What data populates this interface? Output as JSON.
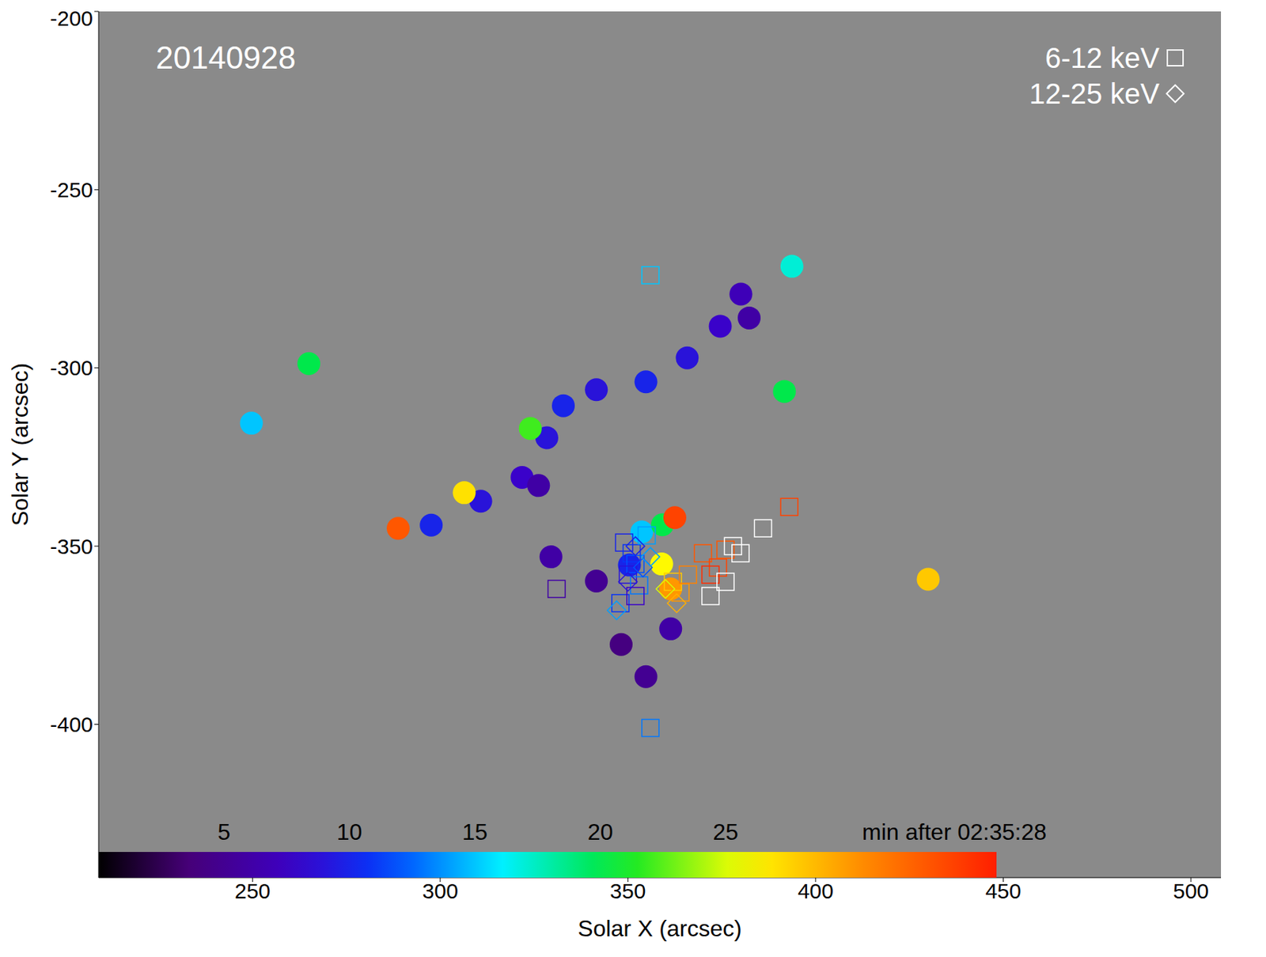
{
  "chart_data": {
    "type": "scatter",
    "title": "20140928",
    "x_label": "Solar X (arcsec)",
    "y_label": "Solar Y (arcsec)",
    "xlim": [
      209,
      508
    ],
    "ylim": [
      -443,
      -200
    ],
    "xticks": [
      250,
      300,
      350,
      400,
      450,
      500
    ],
    "yticks": [
      -400,
      -350,
      -300,
      -250,
      -200
    ],
    "legend": "upper right",
    "colorbar": {
      "range": [
        0,
        35.8
      ],
      "ticks": [
        5,
        10,
        15,
        20,
        25
      ],
      "label": "min after 02:35:28"
    },
    "series": [
      {
        "name": "6-12 keV",
        "marker": "square",
        "x": [
          356,
          331,
          356,
          393,
          386,
          349,
          351,
          352,
          350,
          353,
          348,
          355,
          352,
          362,
          364,
          366,
          370,
          374,
          372,
          376,
          378,
          380,
          376,
          372
        ],
        "y": [
          -274,
          -362,
          -401,
          -339,
          -345,
          -349,
          -352,
          -355,
          -358,
          -361,
          -366,
          -347,
          -364,
          -360,
          -363,
          -358,
          -352,
          -356,
          -358,
          -351,
          -350,
          -352,
          -360,
          -364
        ],
        "t": [
          15,
          6,
          13,
          34,
          38,
          10,
          11,
          12,
          9,
          13,
          11,
          14,
          8,
          28,
          30,
          31,
          33,
          34,
          35,
          33,
          38,
          39,
          37,
          38
        ]
      },
      {
        "name": "12-25 keV",
        "marker": "diamond",
        "x": [
          352,
          354,
          350,
          356,
          360,
          363,
          347
        ],
        "y": [
          -350,
          -356,
          -360,
          -353,
          -362,
          -366,
          -368
        ],
        "t": [
          10,
          12,
          9,
          14,
          25,
          29,
          14
        ]
      },
      {
        "marker": "circle",
        "x": [
          297.6,
          310.8,
          321.8,
          328.4,
          332.8,
          341.6,
          354.8,
          365.8,
          374.6,
          380.1,
          382.3,
          326.2,
          329.5,
          288.8,
          306.4,
          324,
          348.2,
          341.6,
          354.8,
          361.4,
          350.4,
          353.7,
          359.2,
          359,
          361.4,
          362.5,
          265,
          249.7,
          430,
          393.7,
          391.7
        ],
        "y": [
          -344.1,
          -337.4,
          -330.7,
          -319.6,
          -310.6,
          -306.1,
          -303.9,
          -297.2,
          -288.3,
          -279.3,
          -286,
          -333,
          -353,
          -345,
          -335,
          -317,
          -377.6,
          -359.8,
          -386.6,
          -373.2,
          -355.3,
          -346,
          -344,
          -355,
          -362,
          -342,
          -298.8,
          -315.5,
          -359.3,
          -271.5,
          -306.6
        ],
        "t": [
          10,
          9,
          8,
          9,
          10,
          9,
          10,
          9,
          8,
          7,
          6,
          6,
          6,
          33,
          27,
          22,
          4,
          5,
          5,
          6,
          10,
          15,
          20,
          26,
          30,
          34,
          20,
          15,
          28,
          17,
          20
        ]
      }
    ]
  }
}
